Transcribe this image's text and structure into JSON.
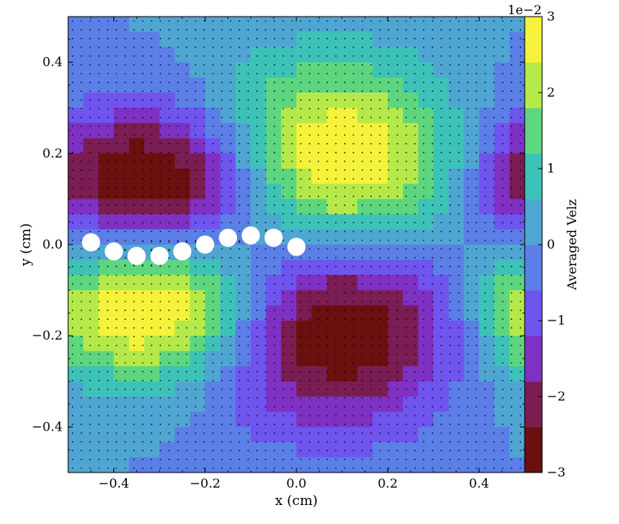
{
  "chart_data": {
    "type": "heatmap",
    "subtype": "heatmap with quiver overlay and circle markers",
    "xlabel": "x  (cm)",
    "ylabel": "y  (cm)",
    "xlim": [
      -0.5,
      0.5
    ],
    "ylim": [
      -0.5,
      0.5
    ],
    "xticks": [
      -0.4,
      -0.2,
      0.0,
      0.2,
      0.4
    ],
    "yticks": [
      -0.4,
      -0.2,
      0.0,
      0.2,
      0.4
    ],
    "xtick_labels": [
      "−0.4",
      "−0.2",
      "0.0",
      "0.2",
      "0.4"
    ],
    "ytick_labels": [
      "−0.4",
      "−0.2",
      "0.0",
      "0.2",
      "0.4"
    ],
    "grid": false,
    "colorbar": {
      "label": "Averaged Velz",
      "offset_text": "1e−2",
      "range": [
        -3,
        3
      ],
      "ticks": [
        -3,
        -2,
        -1,
        0,
        1,
        2,
        3
      ],
      "tick_labels": [
        "−3",
        "−2",
        "−1",
        "0",
        "1",
        "2",
        "3"
      ],
      "colormap": [
        "#6b0f0f",
        "#7a1d52",
        "#7f31c4",
        "#6f54ee",
        "#5b7fe6",
        "#4fa6d2",
        "#3dc2b8",
        "#5ed67f",
        "#b5e94a",
        "#f4f23a"
      ]
    },
    "heatmap_blobs": [
      {
        "cx": -0.3,
        "cy": 0.14,
        "rx": 0.25,
        "ry": 0.16,
        "value": -3.5
      },
      {
        "cx": -0.3,
        "cy": -0.14,
        "rx": 0.25,
        "ry": 0.16,
        "value": 3.5
      },
      {
        "cx": 0.07,
        "cy": 0.17,
        "rx": 0.26,
        "ry": 0.22,
        "value": 3.5
      },
      {
        "cx": 0.07,
        "cy": -0.17,
        "rx": 0.26,
        "ry": 0.22,
        "value": -3.5
      },
      {
        "cx": 0.52,
        "cy": 0.12,
        "rx": 0.12,
        "ry": 0.17,
        "value": -3.0
      },
      {
        "cx": 0.52,
        "cy": -0.12,
        "rx": 0.12,
        "ry": 0.17,
        "value": 3.0
      }
    ],
    "circles": [
      {
        "x": -0.45,
        "y": 0.005
      },
      {
        "x": -0.4,
        "y": -0.015
      },
      {
        "x": -0.35,
        "y": -0.025
      },
      {
        "x": -0.3,
        "y": -0.025
      },
      {
        "x": -0.25,
        "y": -0.015
      },
      {
        "x": -0.2,
        "y": 0.0
      },
      {
        "x": -0.15,
        "y": 0.015
      },
      {
        "x": -0.1,
        "y": 0.02
      },
      {
        "x": -0.05,
        "y": 0.015
      },
      {
        "x": 0.0,
        "y": -0.005
      }
    ],
    "quiver_note_colors": {
      "arrow": "#000000",
      "marker": "#ffffff"
    }
  }
}
